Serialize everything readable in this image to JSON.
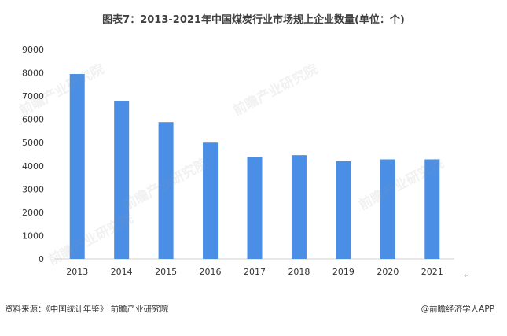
{
  "chart_data": {
    "type": "bar",
    "title": "图表7：2013-2021年中国煤炭行业市场规上企业数量(单位：个)",
    "categories": [
      "2013",
      "2014",
      "2015",
      "2016",
      "2017",
      "2018",
      "2019",
      "2020",
      "2021"
    ],
    "values": [
      7950,
      6800,
      5880,
      5000,
      4380,
      4460,
      4200,
      4280,
      4280
    ],
    "ylim": [
      0,
      9000
    ],
    "yticks": [
      0,
      1000,
      2000,
      3000,
      4000,
      5000,
      6000,
      7000,
      8000,
      9000
    ],
    "xlabel": "",
    "ylabel": "",
    "grid": false,
    "bar_color": "#4a8ee6"
  },
  "watermark": "前瞻产业研究院",
  "footer": {
    "source": "资料来源：《中国统计年鉴》 前瞻产业研究院",
    "brand": "@前瞻经济学人APP"
  },
  "return_mark": "↵"
}
